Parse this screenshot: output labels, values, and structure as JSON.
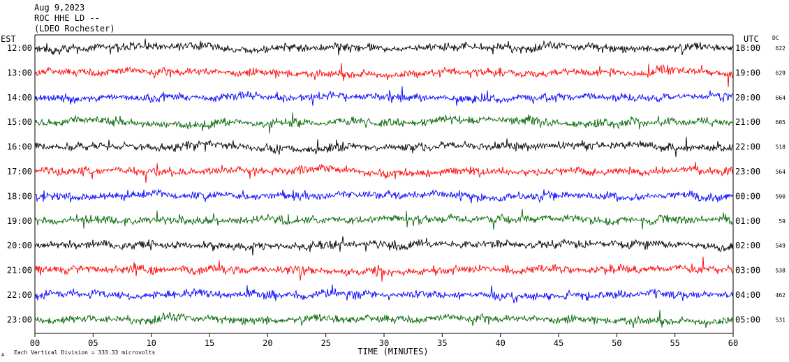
{
  "header": {
    "date": "Aug 9,2023",
    "station": "ROC HHE LD --",
    "network": "(LDEO Rochester)"
  },
  "axes": {
    "left_label": "EST",
    "right_label": "UTC",
    "dc_label": "DC",
    "xlabel": "TIME (MINUTES)",
    "footnote": "Each Vertical Division =  333.33 microvolts",
    "footnote_mark": "A"
  },
  "chart_data": {
    "type": "line",
    "title": "",
    "xlabel": "TIME (MINUTES)",
    "xlim": [
      0,
      60
    ],
    "x_ticks": [
      "00",
      "05",
      "10",
      "15",
      "20",
      "25",
      "30",
      "35",
      "40",
      "45",
      "50",
      "55",
      "60"
    ],
    "trace_colors": [
      "#000000",
      "#ff0000",
      "#0000ff",
      "#006400"
    ],
    "rows": [
      {
        "est": "12:00",
        "utc": "18:00",
        "dc": "622",
        "color": "#000000"
      },
      {
        "est": "13:00",
        "utc": "19:00",
        "dc": "629",
        "color": "#ff0000"
      },
      {
        "est": "14:00",
        "utc": "20:00",
        "dc": "664",
        "color": "#0000ff"
      },
      {
        "est": "15:00",
        "utc": "21:00",
        "dc": "605",
        "color": "#006400"
      },
      {
        "est": "16:00",
        "utc": "22:00",
        "dc": "518",
        "color": "#000000"
      },
      {
        "est": "17:00",
        "utc": "23:00",
        "dc": "564",
        "color": "#ff0000"
      },
      {
        "est": "18:00",
        "utc": "00:00",
        "dc": "590",
        "color": "#0000ff"
      },
      {
        "est": "19:00",
        "utc": "01:00",
        "dc": "59",
        "color": "#006400"
      },
      {
        "est": "20:00",
        "utc": "02:00",
        "dc": "549",
        "color": "#000000"
      },
      {
        "est": "21:00",
        "utc": "03:00",
        "dc": "538",
        "color": "#ff0000"
      },
      {
        "est": "22:00",
        "utc": "04:00",
        "dc": "462",
        "color": "#0000ff"
      },
      {
        "est": "23:00",
        "utc": "05:00",
        "dc": "531",
        "color": "#006400"
      }
    ]
  }
}
